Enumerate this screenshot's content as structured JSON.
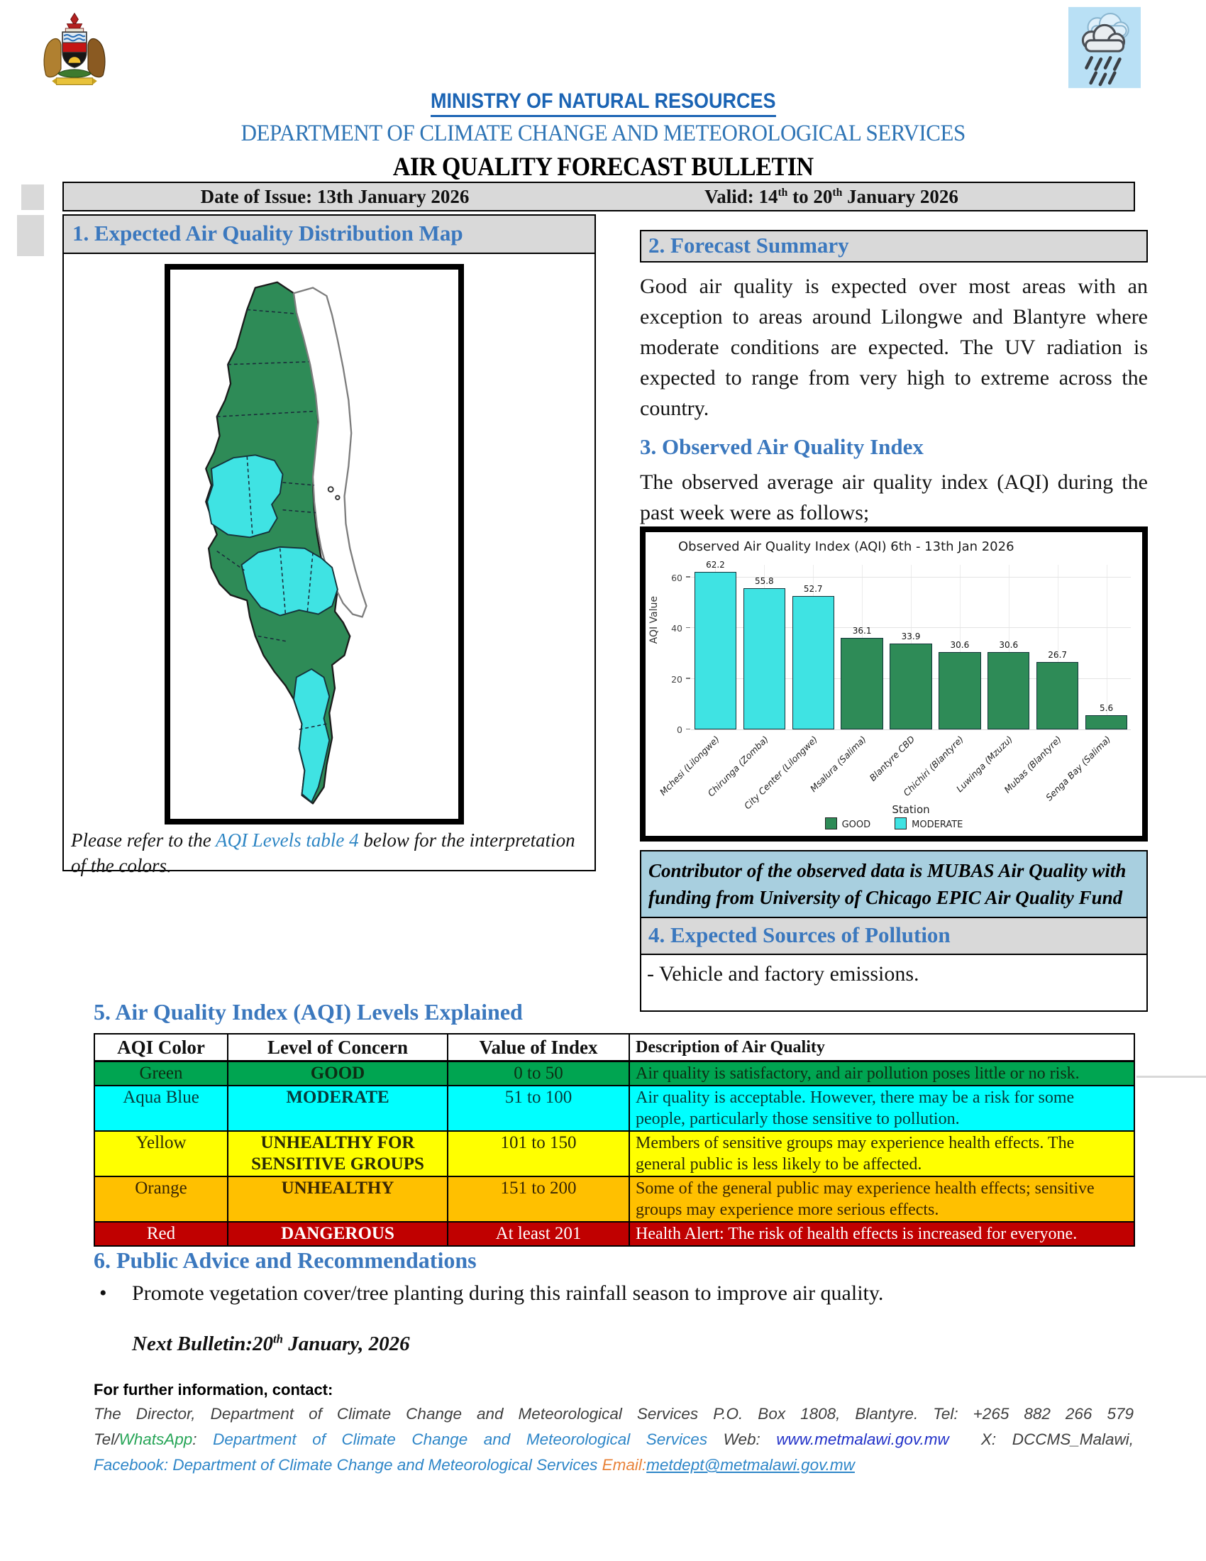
{
  "header": {
    "coat_of_arms_icon": "malawi-coat-of-arms",
    "weather_icon": "rain-cloud",
    "ministry": "MINISTRY OF NATURAL RESOURCES",
    "department": "DEPARTMENT OF CLIMATE CHANGE AND METEOROLOGICAL SERVICES",
    "title": "AIR QUALITY FORECAST BULLETIN",
    "issue_label": "Date of Issue: 13th January 2026",
    "valid_parts": [
      "Valid: 14",
      "th",
      " to 20",
      "th",
      " January 2026"
    ]
  },
  "section1": {
    "title": "1. Expected Air Quality Distribution Map",
    "caption_parts": [
      "Please refer to the ",
      "AQI Levels table 4",
      " below for the interpretation of the colors."
    ],
    "map_colors": {
      "good": "#2e8b57",
      "moderate": "#3fe3e3",
      "lake": "#ffffff"
    }
  },
  "section2": {
    "title": "2. Forecast Summary",
    "body": "Good air quality is expected over most areas with an exception to areas around Lilongwe and Blantyre where moderate conditions are expected. The UV radiation is expected to range from very high to extreme across the country."
  },
  "section3": {
    "title": "3. Observed Air Quality Index",
    "intro": "The observed average air quality index (AQI) during the past week were as follows;"
  },
  "chart_data": {
    "type": "bar",
    "title": "Observed Air Quality Index (AQI) 6th - 13th Jan 2026",
    "xlabel": "Station",
    "ylabel": "AQI Value",
    "ylim": [
      0,
      65
    ],
    "yticks": [
      0,
      20,
      40,
      60
    ],
    "grid": true,
    "legend_position": "bottom",
    "categories": [
      "Mchesi (Lilongwe)",
      "Chirunga (Zomba)",
      "City Center (Lilongwe)",
      "Msalura (Salima)",
      "Blantyre CBD",
      "Chichiri (Blantyre)",
      "Luwinga (Mzuzu)",
      "Mubas (Blantyre)",
      "Senga Bay (Salima)"
    ],
    "values": [
      62.2,
      55.8,
      52.7,
      36.1,
      33.9,
      30.6,
      30.6,
      26.7,
      5.6
    ],
    "statuses": [
      "MODERATE",
      "MODERATE",
      "MODERATE",
      "GOOD",
      "GOOD",
      "GOOD",
      "GOOD",
      "GOOD",
      "GOOD"
    ],
    "status_colors": {
      "GOOD": "#2e8b57",
      "MODERATE": "#3fe3e3"
    },
    "legend": [
      "GOOD",
      "MODERATE"
    ]
  },
  "contributor_note": "Contributor of the observed data is MUBAS Air Quality with funding from University of Chicago EPIC Air Quality Fund",
  "section4": {
    "title": "4. Expected Sources of Pollution",
    "item": "- Vehicle and factory emissions."
  },
  "section5": {
    "title": "5. Air Quality Index (AQI) Levels Explained",
    "table": {
      "headers": [
        "AQI Color",
        "Level of Concern",
        "Value of Index",
        "Description of Air Quality"
      ],
      "rows": [
        {
          "color_name": "Green",
          "concern": "GOOD",
          "range": "0 to 50",
          "description": "Air quality is satisfactory, and air pollution poses little or no risk.",
          "row_style": "background:#00a551;color:#0d2d14"
        },
        {
          "color_name": "Aqua Blue",
          "concern": "MODERATE",
          "range": "51 to 100",
          "description": "Air quality is acceptable. However, there may be a risk for some people, particularly those sensitive to pollution.",
          "row_style": "background:#00ffff;color:#063b3b"
        },
        {
          "color_name": "Yellow",
          "concern": "UNHEALTHY FOR SENSITIVE GROUPS",
          "range": "101 to 150",
          "description": "Members of sensitive groups may experience health effects. The general public is less likely to be affected.",
          "row_style": "background:#ffff00;color:#2b2b06"
        },
        {
          "color_name": "Orange",
          "concern": "UNHEALTHY",
          "range": "151 to 200",
          "description": "Some of the general public may experience health effects; sensitive groups may experience more serious effects.",
          "row_style": "background:#ffc000;color:#3a2703"
        },
        {
          "color_name": "Red",
          "concern": "DANGEROUS",
          "range": "At least 201",
          "description": "Health Alert: The risk of health effects is increased for everyone.",
          "row_style": "background:#c00000;color:#ffffff"
        }
      ]
    }
  },
  "section6": {
    "title": "6. Public Advice and Recommendations",
    "bullet_marker": "•",
    "bullet": "Promote vegetation cover/tree planting during this rainfall season to improve air quality.",
    "next_bulletin_parts": [
      "Next Bulletin:20",
      "th",
      " January, 2026"
    ]
  },
  "contact": {
    "heading": "For further information, contact:",
    "line1": "The Director, Department of Climate Change and Meteorological Services P.O. Box 1808, Blantyre. Tel: +265 882 266 579",
    "line2": {
      "tel": "Tel/",
      "whatsapp": "WhatsApp",
      "sep": ": ",
      "dept": "Department of Climate Change and Meteorological Services",
      "web_label": " Web: ",
      "web_url": "www.metmalawi.gov.mw",
      "x_handle": "  X: DCCMS_Malawi,"
    },
    "line3": {
      "fb_label": "Facebook",
      "sep": ": ",
      "dept": "Department of Climate Change and Meteorological Services ",
      "email_label": "Email:",
      "email": "metdept@metmalawi.gov.mw"
    }
  }
}
